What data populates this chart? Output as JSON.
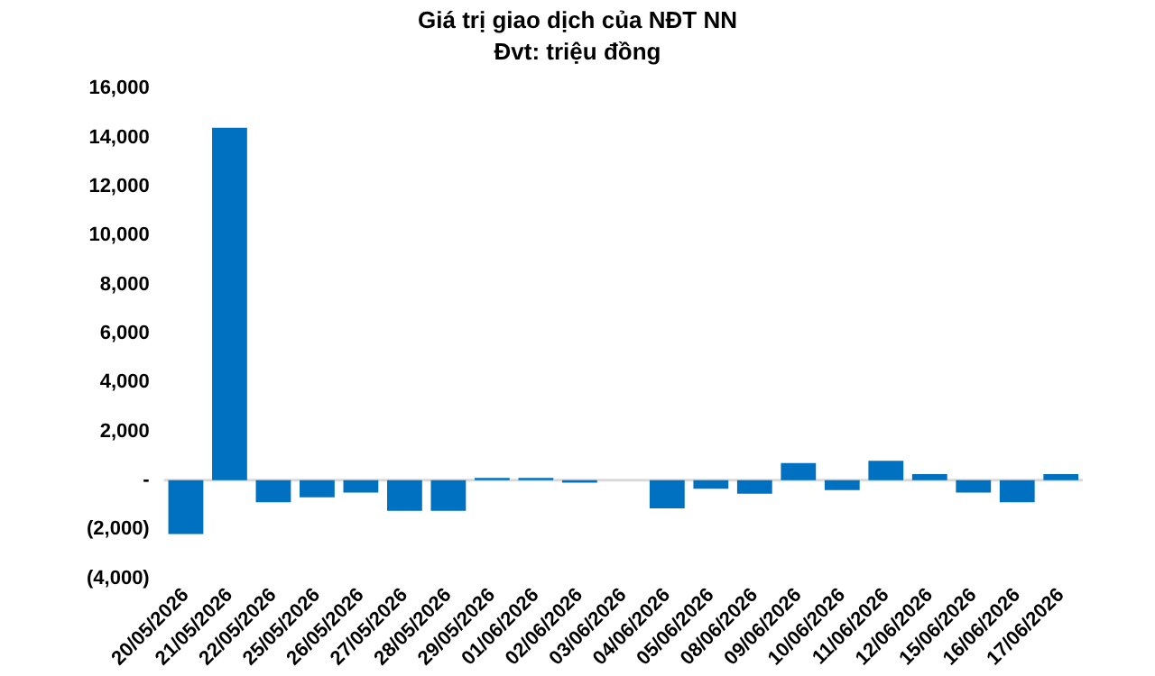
{
  "chart_data": {
    "type": "bar",
    "title": "Giá trị giao dịch của NĐT NN",
    "subtitle": "Đvt: triệu đồng",
    "categories": [
      "20/05/2026",
      "21/05/2026",
      "22/05/2026",
      "25/05/2026",
      "26/05/2026",
      "27/05/2026",
      "28/05/2026",
      "29/05/2026",
      "01/06/2026",
      "02/06/2026",
      "03/06/2026",
      "04/06/2026",
      "05/06/2026",
      "08/06/2026",
      "09/06/2026",
      "10/06/2026",
      "11/06/2026",
      "12/06/2026",
      "15/06/2026",
      "16/06/2026",
      "17/06/2026"
    ],
    "values": [
      -2200,
      14400,
      -900,
      -700,
      -500,
      -1250,
      -1250,
      100,
      100,
      -100,
      0,
      -1150,
      -350,
      -550,
      700,
      -400,
      800,
      250,
      -500,
      -900,
      250
    ],
    "color": "#0070c0",
    "ylim": [
      -4000,
      16000
    ],
    "yticks": [
      {
        "value": -4000,
        "label": "(4,000)"
      },
      {
        "value": -2000,
        "label": "(2,000)"
      },
      {
        "value": 0,
        "label": "-"
      },
      {
        "value": 2000,
        "label": "2,000"
      },
      {
        "value": 4000,
        "label": "4,000"
      },
      {
        "value": 6000,
        "label": "6,000"
      },
      {
        "value": 8000,
        "label": "8,000"
      },
      {
        "value": 10000,
        "label": "10,000"
      },
      {
        "value": 12000,
        "label": "12,000"
      },
      {
        "value": 14000,
        "label": "14,000"
      },
      {
        "value": 16000,
        "label": "16,000"
      }
    ],
    "ref_lines": [
      {
        "axis": "y",
        "value": 0,
        "color": "#d9d9d9"
      }
    ],
    "grid": false,
    "legend": false
  }
}
